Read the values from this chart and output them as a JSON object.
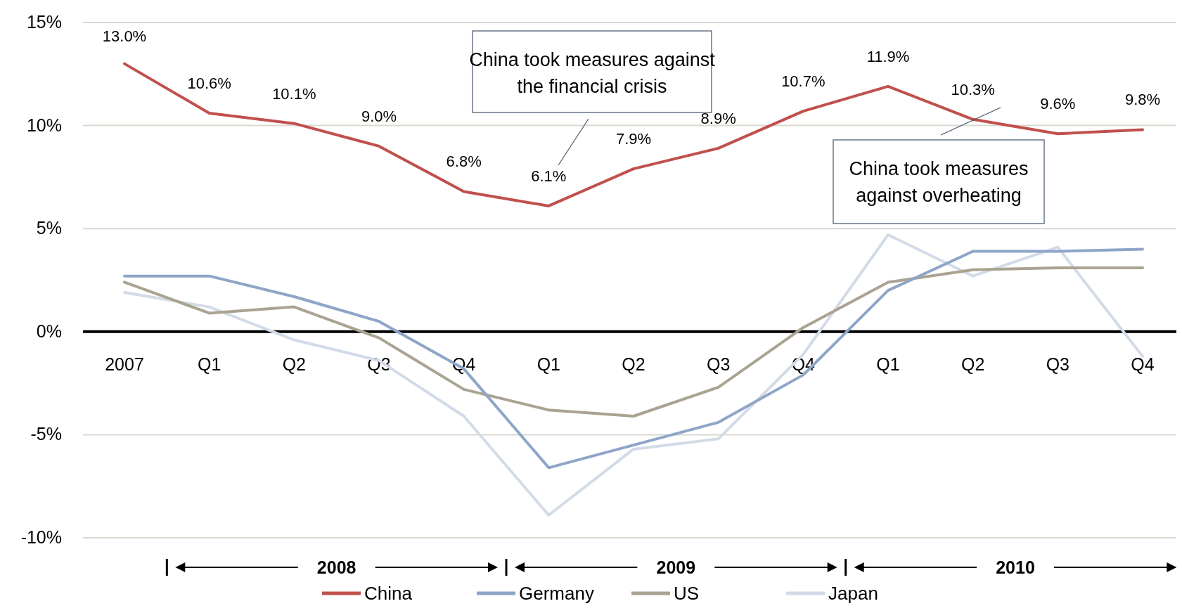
{
  "chart_data": {
    "type": "line",
    "categories": [
      "2007",
      "Q1",
      "Q2",
      "Q3",
      "Q4",
      "Q1",
      "Q2",
      "Q3",
      "Q4",
      "Q1",
      "Q2",
      "Q3",
      "Q4"
    ],
    "series": [
      {
        "name": "China",
        "color": "#c0504d",
        "values": [
          13.0,
          10.6,
          10.1,
          9.0,
          6.8,
          6.1,
          7.9,
          8.9,
          10.7,
          11.9,
          10.3,
          9.6,
          9.8
        ],
        "value_labels": [
          "13.0%",
          "10.6%",
          "10.1%",
          "9.0%",
          "6.8%",
          "6.1%",
          "7.9%",
          "8.9%",
          "10.7%",
          "11.9%",
          "10.3%",
          "9.6%",
          "9.8%"
        ]
      },
      {
        "name": "Germany",
        "color": "#8ea5c8",
        "values": [
          2.7,
          2.7,
          1.7,
          0.5,
          -1.8,
          -6.6,
          -5.5,
          -4.4,
          -2.1,
          2.0,
          3.9,
          3.9,
          4.0
        ]
      },
      {
        "name": "US",
        "color": "#aaa392",
        "values": [
          2.4,
          0.9,
          1.2,
          -0.3,
          -2.8,
          -3.8,
          -4.1,
          -2.7,
          0.2,
          2.4,
          3.0,
          3.1,
          3.1
        ]
      },
      {
        "name": "Japan",
        "color": "#d3dbe8",
        "values": [
          1.9,
          1.2,
          -0.4,
          -1.4,
          -4.1,
          -8.9,
          -5.7,
          -5.2,
          -1.1,
          4.7,
          2.7,
          4.1,
          -1.2
        ]
      }
    ],
    "ylim": [
      -10,
      15
    ],
    "yticks": [
      {
        "value": -10,
        "label": "-10%"
      },
      {
        "value": -5,
        "label": "-5%"
      },
      {
        "value": 0,
        "label": "0%"
      },
      {
        "value": 5,
        "label": "5%"
      },
      {
        "value": 10,
        "label": "10%"
      },
      {
        "value": 15,
        "label": "15%"
      }
    ],
    "grid": "y",
    "legend": "bottom",
    "marker": "none",
    "line_style": "solid",
    "annotations": [
      "China took measures against the financial crisis",
      "China took measures against overheating",
      "2008",
      "2009",
      "2010"
    ]
  }
}
